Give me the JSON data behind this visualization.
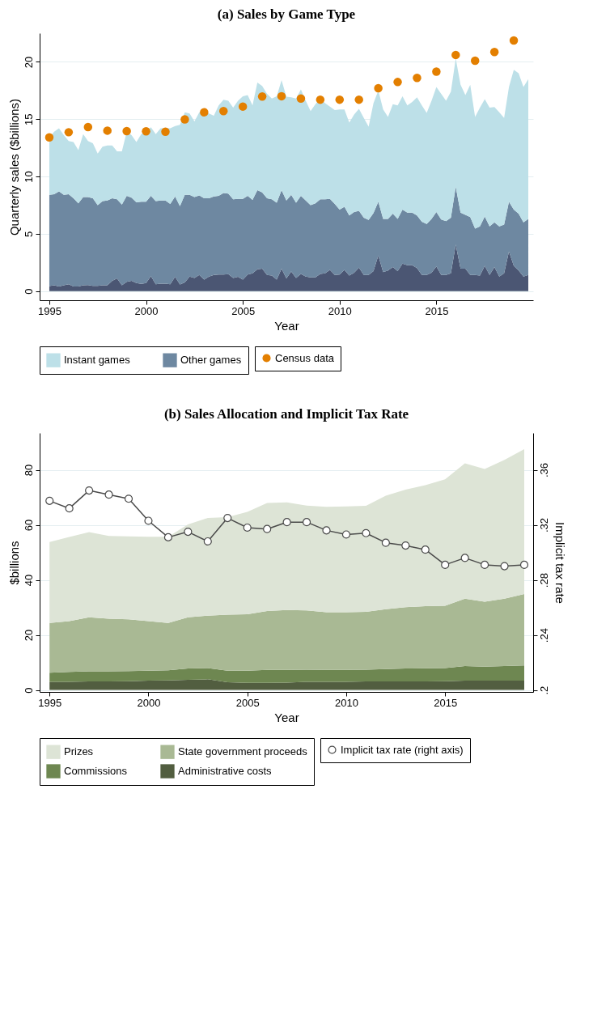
{
  "chart_data": [
    {
      "type": "area",
      "stacked": true,
      "title": "(a) Sales by Game Type",
      "xlabel": "Year",
      "ylabel": "Quarterly sales ($billions)",
      "x": [
        1995,
        1995.25,
        1995.5,
        1995.75,
        1996,
        1996.25,
        1996.5,
        1996.75,
        1997,
        1997.25,
        1997.5,
        1997.75,
        1998,
        1998.25,
        1998.5,
        1998.75,
        1999,
        1999.25,
        1999.5,
        1999.75,
        2000,
        2000.25,
        2000.5,
        2000.75,
        2001,
        2001.25,
        2001.5,
        2001.75,
        2002,
        2002.25,
        2002.5,
        2002.75,
        2003,
        2003.25,
        2003.5,
        2003.75,
        2004,
        2004.25,
        2004.5,
        2004.75,
        2005,
        2005.25,
        2005.5,
        2005.75,
        2006,
        2006.25,
        2006.5,
        2006.75,
        2007,
        2007.25,
        2007.5,
        2007.75,
        2008,
        2008.25,
        2008.5,
        2008.75,
        2009,
        2009.25,
        2009.5,
        2009.75,
        2010,
        2010.25,
        2010.5,
        2010.75,
        2011,
        2011.25,
        2011.5,
        2011.75,
        2012,
        2012.25,
        2012.5,
        2012.75,
        2013,
        2013.25,
        2013.5,
        2013.75,
        2014,
        2014.25,
        2014.5,
        2014.75,
        2015,
        2015.25,
        2015.5,
        2015.75,
        2016,
        2016.25,
        2016.5,
        2016.75,
        2017,
        2017.25,
        2017.5,
        2017.75,
        2018,
        2018.25,
        2018.5,
        2018.75,
        2019,
        2019.25,
        2019.5,
        2019.75
      ],
      "xlim": [
        1994.5,
        2020
      ],
      "xticks": [
        1995,
        2000,
        2005,
        2010,
        2015
      ],
      "ylim": [
        -0.8,
        22.5
      ],
      "yticks": [
        0,
        5,
        10,
        15,
        20
      ],
      "grid": "y",
      "legend": "bottom",
      "series": [
        {
          "color": "#4b5673",
          "values": [
            0.43,
            0.5,
            0.4,
            0.5,
            0.6,
            0.4,
            0.4,
            0.5,
            0.53,
            0.45,
            0.45,
            0.5,
            0.5,
            0.9,
            1.1,
            0.5,
            0.8,
            0.9,
            0.7,
            0.63,
            0.7,
            1.3,
            0.6,
            0.65,
            0.65,
            0.6,
            1.25,
            0.57,
            0.76,
            1.27,
            1.15,
            1.4,
            1.0,
            1.27,
            1.4,
            1.45,
            1.45,
            1.47,
            1.15,
            1.25,
            1.0,
            1.45,
            1.55,
            1.9,
            1.95,
            1.4,
            1.35,
            1.0,
            1.95,
            1.1,
            1.7,
            1.15,
            1.5,
            1.27,
            1.2,
            1.2,
            1.5,
            1.55,
            1.85,
            1.4,
            1.45,
            1.85,
            1.35,
            1.6,
            2.05,
            1.4,
            1.4,
            1.75,
            3.1,
            1.65,
            1.8,
            2.1,
            1.75,
            2.4,
            2.25,
            2.25,
            2.0,
            1.4,
            1.4,
            1.6,
            2.15,
            1.4,
            1.4,
            1.55,
            4.05,
            1.95,
            1.95,
            1.4,
            1.4,
            1.35,
            2.2,
            1.4,
            2.1,
            1.27,
            1.55,
            3.45,
            2.2,
            1.8,
            1.27,
            1.4
          ]
        },
        {
          "name": "Other games",
          "color": "#6e88a1",
          "values": [
            7.97,
            7.95,
            8.3,
            7.9,
            7.85,
            7.7,
            7.25,
            7.7,
            7.67,
            7.65,
            7.05,
            7.35,
            7.4,
            7.2,
            6.9,
            7.05,
            7.5,
            7.25,
            7.05,
            7.17,
            7.1,
            7.0,
            7.25,
            7.25,
            7.25,
            7.0,
            7.0,
            6.83,
            7.64,
            7.13,
            7.05,
            6.95,
            7.1,
            6.83,
            6.85,
            6.85,
            7.1,
            7.03,
            6.85,
            6.8,
            7.05,
            6.85,
            6.4,
            6.9,
            6.65,
            6.7,
            6.65,
            6.7,
            6.85,
            6.8,
            6.7,
            6.55,
            6.8,
            6.63,
            6.3,
            6.45,
            6.5,
            6.45,
            6.2,
            6.2,
            5.65,
            5.5,
            5.25,
            5.3,
            4.95,
            5.0,
            4.8,
            5.05,
            4.7,
            4.65,
            4.5,
            4.65,
            4.55,
            4.7,
            4.6,
            4.6,
            4.6,
            4.65,
            4.45,
            4.7,
            4.75,
            4.85,
            4.7,
            4.85,
            5.05,
            4.9,
            4.7,
            5.05,
            4.05,
            4.3,
            4.3,
            4.25,
            3.9,
            4.38,
            4.25,
            4.35,
            4.9,
            4.95,
            4.73,
            4.9
          ]
        },
        {
          "name": "Instant games",
          "color": "#bde0e8",
          "values": [
            5.0,
            5.45,
            5.5,
            5.2,
            4.65,
            4.9,
            4.65,
            5.5,
            4.9,
            4.8,
            4.5,
            4.75,
            4.8,
            4.6,
            4.2,
            4.65,
            5.6,
            5.45,
            5.25,
            5.9,
            6.1,
            6.0,
            5.85,
            6.3,
            6.3,
            6.6,
            6.15,
            7.1,
            7.2,
            7.1,
            6.6,
            7.25,
            7.6,
            7.4,
            7.05,
            7.9,
            8.15,
            8.1,
            8.0,
            8.55,
            8.95,
            8.8,
            8.25,
            9.4,
            9.3,
            9.1,
            8.8,
            9.3,
            9.6,
            9.05,
            8.5,
            9.1,
            9.3,
            8.7,
            8.2,
            8.65,
            8.8,
            8.4,
            8.05,
            8.2,
            8.75,
            8.5,
            8.1,
            8.5,
            8.9,
            8.7,
            8.15,
            9.6,
            9.7,
            9.55,
            8.9,
            9.55,
            9.9,
            9.9,
            9.35,
            9.65,
            10.3,
            10.15,
            9.7,
            10.3,
            10.9,
            10.95,
            10.5,
            11.0,
            11.2,
            11.15,
            10.45,
            11.55,
            9.75,
            10.35,
            10.25,
            10.35,
            10.05,
            9.95,
            9.3,
            10.0,
            12.2,
            12.25,
            11.8,
            12.2
          ]
        },
        {
          "type": "scatter",
          "name": "Census data",
          "color": "#e37f00",
          "marker": "circle",
          "x": [
            1995,
            1996,
            1997,
            1998,
            1999,
            2000,
            2001,
            2002,
            2003,
            2004,
            2005,
            2006,
            2007,
            2008,
            2009,
            2010,
            2011,
            2012,
            2013,
            2014,
            2015,
            2016,
            2017,
            2018,
            2019
          ],
          "values": [
            13.41,
            13.86,
            14.31,
            14.0,
            13.96,
            13.94,
            13.9,
            14.98,
            15.6,
            15.7,
            16.1,
            16.98,
            17.0,
            16.8,
            16.7,
            16.7,
            16.7,
            17.7,
            18.24,
            18.6,
            19.15,
            20.6,
            20.1,
            20.86,
            21.86
          ]
        }
      ]
    },
    {
      "type": "area",
      "stacked": true,
      "title": "(b) Sales Allocation and Implicit Tax Rate",
      "xlabel": "Year",
      "ylabel": "$billions",
      "y2label": "Implicit tax rate",
      "x": [
        1995,
        1996,
        1997,
        1998,
        1999,
        2000,
        2001,
        2002,
        2003,
        2004,
        2005,
        2006,
        2007,
        2008,
        2009,
        2010,
        2011,
        2012,
        2013,
        2014,
        2015,
        2016,
        2017,
        2018,
        2019
      ],
      "xlim": [
        1994.5,
        2019.45
      ],
      "xticks": [
        1995,
        2000,
        2005,
        2010,
        2015
      ],
      "ylim": [
        -0.7,
        93.4
      ],
      "yticks": [
        0,
        20,
        40,
        60,
        80
      ],
      "y2lim": [
        0.1986,
        0.3868
      ],
      "y2ticks": [
        {
          "value": 0.2,
          "label": ".2"
        },
        {
          "value": 0.24,
          "label": ".24"
        },
        {
          "value": 0.28,
          "label": ".28"
        },
        {
          "value": 0.32,
          "label": ".32"
        },
        {
          "value": 0.36,
          "label": ".36"
        }
      ],
      "grid": "y",
      "legend": "bottom",
      "series": [
        {
          "name": "Administrative costs",
          "color": "#525e40",
          "values": [
            3.0,
            3.0,
            3.1,
            3.1,
            3.2,
            3.4,
            3.5,
            3.7,
            3.9,
            2.8,
            2.6,
            2.6,
            2.7,
            3.0,
            3.0,
            3.0,
            3.1,
            3.1,
            3.1,
            3.1,
            3.2,
            3.4,
            3.4,
            3.4,
            3.4
          ]
        },
        {
          "name": "Commissions",
          "color": "#6e8751",
          "values": [
            3.3,
            3.6,
            3.7,
            3.7,
            3.7,
            3.6,
            3.7,
            4.1,
            4.1,
            4.2,
            4.4,
            4.7,
            4.6,
            4.4,
            4.3,
            4.3,
            4.3,
            4.5,
            4.7,
            4.8,
            4.8,
            5.3,
            5.1,
            5.3,
            5.5
          ]
        },
        {
          "name": "State government proceeds",
          "color": "#a9b994",
          "values": [
            18.1,
            18.4,
            19.6,
            19.1,
            18.8,
            18.0,
            17.2,
            18.6,
            19.0,
            20.4,
            20.5,
            21.4,
            21.8,
            21.5,
            21.0,
            21.0,
            21.0,
            21.8,
            22.3,
            22.6,
            22.6,
            24.5,
            23.6,
            24.5,
            26.0
          ]
        },
        {
          "name": "Prizes",
          "color": "#dde4d6",
          "values": [
            29.4,
            30.6,
            31.0,
            30.1,
            30.1,
            30.7,
            31.3,
            33.8,
            35.5,
            35.4,
            37.2,
            39.3,
            39.1,
            38.1,
            38.3,
            38.4,
            38.5,
            41.2,
            42.7,
            43.9,
            46.0,
            49.2,
            48.2,
            50.4,
            52.6
          ]
        },
        {
          "type": "line",
          "axis": "y2",
          "marker": "circle",
          "line_style": "solid",
          "name": "Implicit tax rate (right axis)",
          "color": "#4a4a4a",
          "values": [
            0.3375,
            0.332,
            0.345,
            0.342,
            0.339,
            0.323,
            0.311,
            0.315,
            0.308,
            0.325,
            0.318,
            0.317,
            0.322,
            0.322,
            0.316,
            0.313,
            0.314,
            0.307,
            0.305,
            0.302,
            0.291,
            0.296,
            0.291,
            0.29,
            0.291
          ]
        }
      ]
    }
  ]
}
